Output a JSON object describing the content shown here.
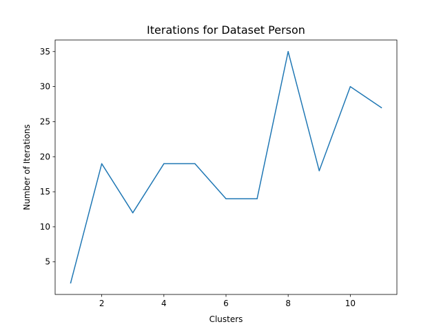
{
  "chart_data": {
    "type": "line",
    "title": "Iterations for Dataset Person",
    "xlabel": "Clusters",
    "ylabel": "Number of Iterations",
    "x": [
      1,
      2,
      3,
      4,
      5,
      6,
      7,
      8,
      9,
      10,
      11
    ],
    "series": [
      {
        "values": [
          2,
          19,
          12,
          19,
          19,
          14,
          14,
          35,
          18,
          30,
          27
        ],
        "color": "#1f77b4"
      }
    ],
    "xlim": [
      0.5,
      11.5
    ],
    "ylim": [
      0.35,
      36.65
    ],
    "xticks": [
      2,
      4,
      6,
      8,
      10
    ],
    "yticks": [
      5,
      10,
      15,
      20,
      25,
      30,
      35
    ],
    "grid": false,
    "legend": "none"
  }
}
